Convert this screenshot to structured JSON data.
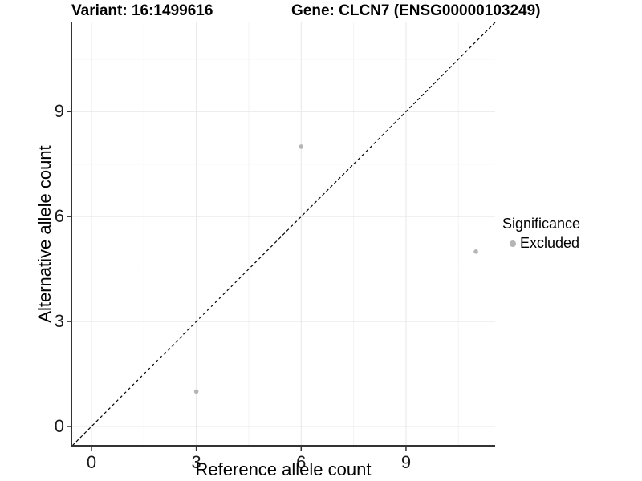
{
  "titles": {
    "variant": "Variant: 16:1499616",
    "gene": "Gene: CLCN7 (ENSG00000103249)"
  },
  "axes": {
    "xlabel": "Reference allele count",
    "ylabel": "Alternative allele count"
  },
  "legend": {
    "title": "Significance",
    "items": [
      {
        "label": "Excluded",
        "color": "#b5b5b5"
      }
    ]
  },
  "chart_data": {
    "type": "scatter",
    "title_left": "Variant: 16:1499616",
    "title_right": "Gene: CLCN7 (ENSG00000103249)",
    "xlabel": "Reference allele count",
    "ylabel": "Alternative allele count",
    "series": [
      {
        "name": "Excluded",
        "color": "#b5b5b5",
        "points": [
          {
            "x": 3,
            "y": 1
          },
          {
            "x": 6,
            "y": 8
          },
          {
            "x": 11,
            "y": 5
          }
        ]
      }
    ],
    "xticks": [
      0,
      3,
      6,
      9
    ],
    "yticks": [
      0,
      3,
      6,
      9
    ],
    "minor_xticks": [
      1.5,
      4.5,
      7.5,
      10.5
    ],
    "minor_yticks": [
      1.5,
      4.5,
      7.5,
      10.5
    ],
    "xlim": [
      -0.55,
      11.55
    ],
    "ylim": [
      -0.55,
      11.55
    ],
    "reference_line": {
      "slope": 1,
      "intercept": 0,
      "style": "dashed",
      "color": "#000000"
    },
    "grid": "major+minor",
    "legend_position": "right",
    "point_radius_px": 2.8
  },
  "colors": {
    "background": "#ffffff",
    "panel_background": "#ffffff",
    "grid_major": "#e7e7e7",
    "grid_minor": "#f3f3f3",
    "axis_line": "#333333",
    "tick_mark": "#333333",
    "tick_label": "#1a1a1a",
    "title": "#000000",
    "point": "#b5b5b5"
  }
}
